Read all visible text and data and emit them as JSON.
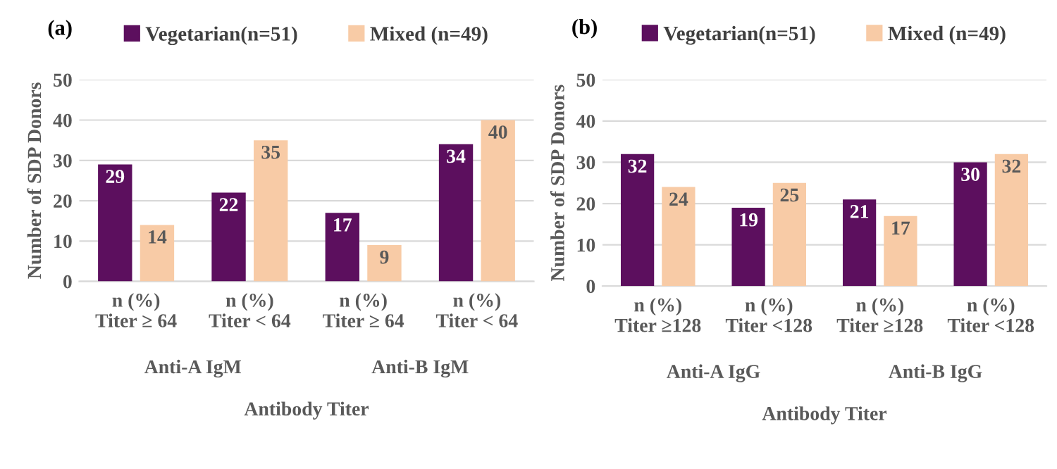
{
  "chart_data": [
    {
      "type": "bar",
      "title": "(a)",
      "xlabel": "Antibody Titer",
      "ylabel": "Number of SDP Donors",
      "categories": [
        "n (%)\nTiter ≥ 64",
        "n (%)\nTiter < 64",
        "n (%)\nTiter ≥ 64",
        "n (%)\nTiter < 64"
      ],
      "series": [
        {
          "name": "Vegetarian(n=51)",
          "color": "#5c0f5e",
          "values": [
            29,
            22,
            17,
            34
          ]
        },
        {
          "name": "Mixed (n=49)",
          "color": "#f8cba6",
          "values": [
            14,
            35,
            9,
            40
          ]
        }
      ],
      "annotations": [
        "Anti-A IgM",
        "Anti-B IgM"
      ],
      "ylim": [
        0,
        50
      ],
      "yticks": [
        0,
        10,
        20,
        30,
        40,
        50
      ],
      "grid": "y",
      "legend": "top",
      "data_labels": true
    },
    {
      "type": "bar",
      "title": "(b)",
      "xlabel": "Antibody Titer",
      "ylabel": "Number of SDP Donors",
      "categories": [
        "n (%)\nTiter ≥128",
        "n (%)\nTiter <128",
        "n (%)\nTiter ≥128",
        "n (%)\nTiter <128"
      ],
      "series": [
        {
          "name": "Vegetarian(n=51)",
          "color": "#5c0f5e",
          "values": [
            32,
            19,
            21,
            30
          ]
        },
        {
          "name": "Mixed (n=49)",
          "color": "#f8cba6",
          "values": [
            24,
            25,
            17,
            32
          ]
        }
      ],
      "annotations": [
        "Anti-A IgG",
        "Anti-B IgG"
      ],
      "ylim": [
        0,
        50
      ],
      "yticks": [
        0,
        10,
        20,
        30,
        40,
        50
      ],
      "grid": "y",
      "legend": "top",
      "data_labels": true
    }
  ]
}
